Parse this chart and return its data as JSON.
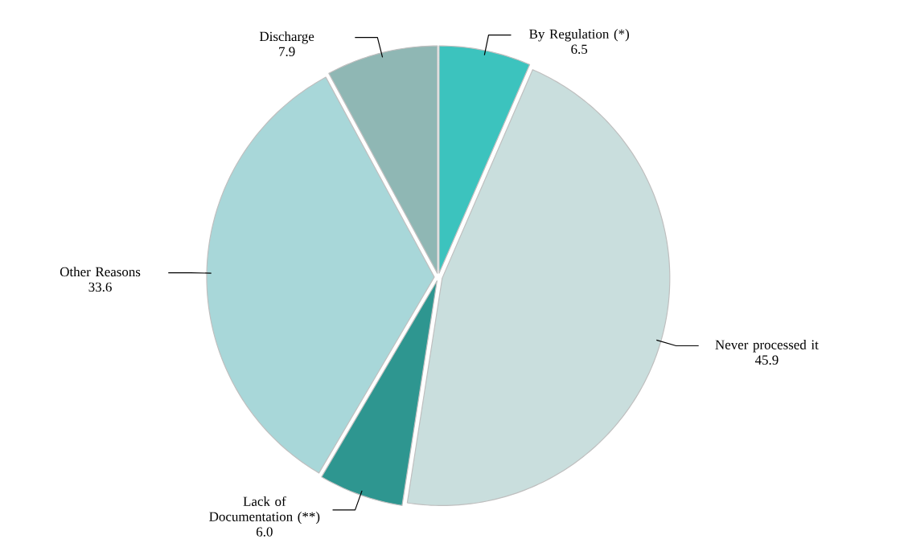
{
  "chart_data": {
    "type": "pie",
    "categories": [
      "By Regulation (*)",
      "Never processed it",
      "Lack of Documentation (**)",
      "Other Reasons",
      "Discharge"
    ],
    "values": [
      6.5,
      45.9,
      6.0,
      33.6,
      7.9
    ],
    "value_labels": [
      "6.5",
      "45.9",
      "6.0",
      "33.6",
      "7.9"
    ],
    "colors": [
      "#3cc3be",
      "#c9dedd",
      "#2e9690",
      "#a8d7d9",
      "#8fb7b4"
    ]
  }
}
